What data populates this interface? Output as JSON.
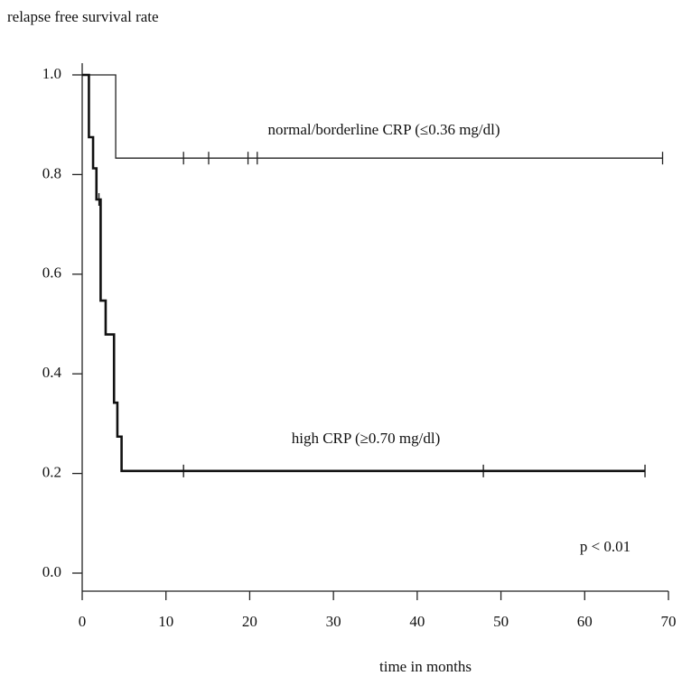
{
  "chart_data": {
    "type": "kaplan-meier",
    "title": "relapse free survival rate",
    "x_label": "time in months",
    "annotation": "p < 0.01",
    "xlim": [
      0,
      70
    ],
    "xticks": [
      0,
      10,
      20,
      30,
      40,
      50,
      60,
      70
    ],
    "ylim": [
      0,
      1.0
    ],
    "yticks": [
      {
        "value": 0,
        "label": "0.0"
      },
      0.2,
      0.4,
      0.6,
      0.8,
      {
        "value": 1,
        "label": "1.0"
      }
    ],
    "series": [
      {
        "name": "normal/borderline CRP (≤0.36 mg/dl)",
        "color": "#222",
        "x": [
          0,
          4
        ],
        "values": [
          1.0,
          0.833
        ],
        "censored_x": [
          12.1,
          15.1,
          19.8,
          20.9,
          69.3
        ]
      },
      {
        "name": "high CRP (≥0.70 mg/dl)",
        "color": "#111",
        "x": [
          0,
          0.8,
          1.3,
          1.7,
          2.2,
          2.8,
          3.8,
          4.2,
          4.7
        ],
        "values": [
          1.0,
          0.875,
          0.8125,
          0.75,
          0.547,
          0.479,
          0.342,
          0.274,
          0.205
        ],
        "censored_x": [
          2.0,
          12.1,
          47.9,
          67.2
        ]
      }
    ]
  }
}
